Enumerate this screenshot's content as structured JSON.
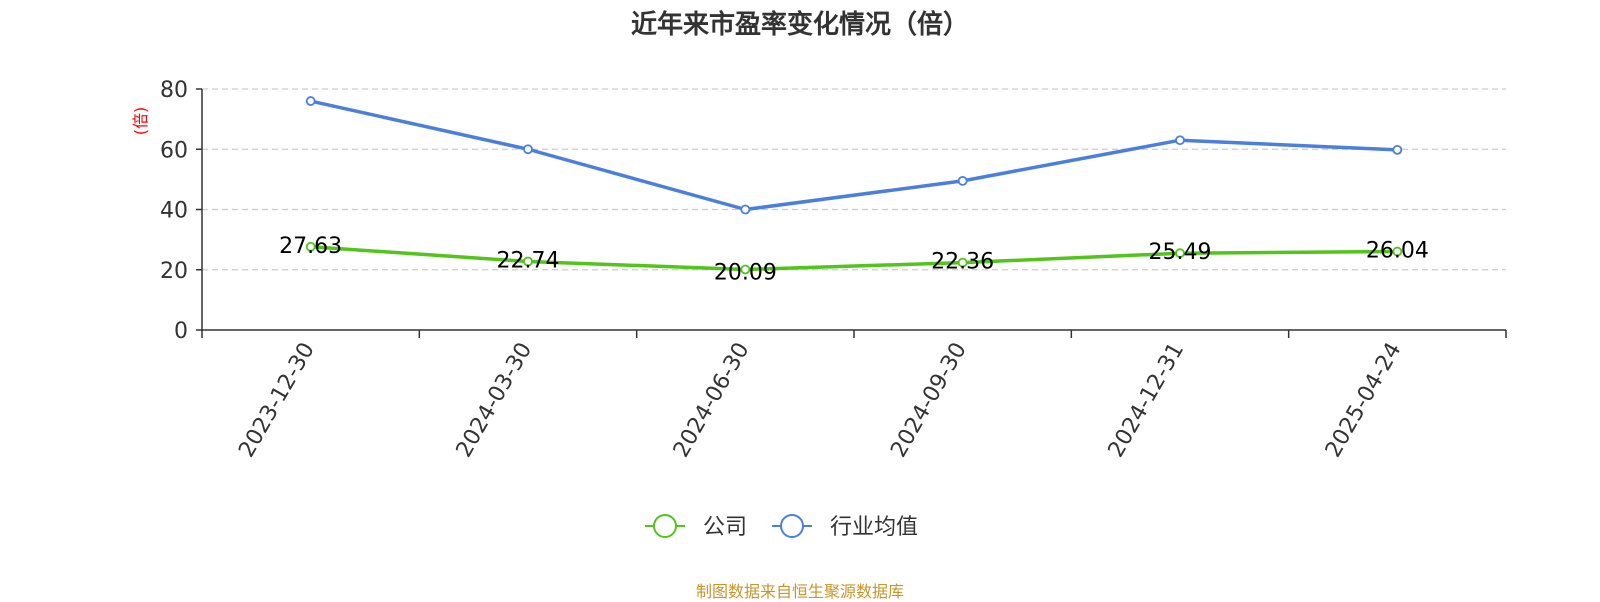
{
  "title": "近年来市盈率变化情况（倍）",
  "source": "制图数据来自恒生聚源数据库",
  "colors": {
    "company": "#52c41a",
    "industry": "#4a7fdc",
    "ylabel": "#ff0000",
    "grid": "#cccccc",
    "source": "#c8952a"
  },
  "chart_data": {
    "type": "line",
    "title": "近年来市盈率变化情况（倍）",
    "xlabel": "",
    "ylabel": "(倍)",
    "ylim": [
      0,
      80
    ],
    "yticks": [
      0,
      20,
      40,
      60,
      80
    ],
    "grid": true,
    "legend_position": "bottom",
    "categories": [
      "2023-12-30",
      "2024-03-30",
      "2024-06-30",
      "2024-09-30",
      "2024-12-31",
      "2025-04-24"
    ],
    "series": [
      {
        "name": "公司",
        "values": [
          27.63,
          22.74,
          20.09,
          22.36,
          25.49,
          26.04
        ],
        "data_labels": [
          "27.63",
          "22.74",
          "20.09",
          "22.36",
          "25.49",
          "26.04"
        ]
      },
      {
        "name": "行业均值",
        "values": [
          76,
          60,
          40,
          49.5,
          63,
          59.8
        ]
      }
    ]
  }
}
